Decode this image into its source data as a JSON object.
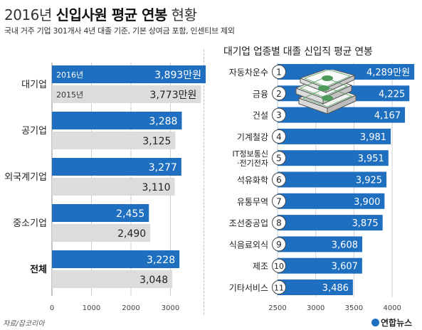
{
  "header": {
    "title_year": "2016년",
    "title_main": "신입사원 평균 연봉",
    "title_rest": "현황",
    "subtitle": "국내 거주 기업 301개사 4년 대졸 기준, 기본 상여금 포함, 인센티브 제외"
  },
  "right_title": "대기업 업종별 대졸 신입직 평균 연봉",
  "source": "자료/잡코리아",
  "logo": "연합뉴스",
  "colors": {
    "accent_2016": "#1f6fc0",
    "gray_2015": "#dcdcdc",
    "highlight_label": "#111111"
  },
  "chart_data": [
    {
      "type": "bar",
      "orientation": "horizontal",
      "categories": [
        "대기업",
        "공기업",
        "외국계기업",
        "중소기업",
        "전체"
      ],
      "highlight_category": "전체",
      "series": [
        {
          "name": "2016년",
          "values": [
            3893,
            3288,
            3277,
            2455,
            3228
          ],
          "color": "#1f6fc0"
        },
        {
          "name": "2015년",
          "values": [
            3773,
            3125,
            3110,
            2490,
            3048
          ],
          "color": "#dcdcdc"
        }
      ],
      "labels_2016": [
        "3,893만원",
        "3,288",
        "3,277",
        "2,455",
        "3,228"
      ],
      "labels_2015": [
        "3,773만원",
        "3,125",
        "3,110",
        "2,490",
        "3,048"
      ],
      "xlim": [
        0,
        3800
      ],
      "xticks": [
        0,
        1000,
        2000,
        3000
      ],
      "grid": true,
      "legend": "inside-first-bars"
    },
    {
      "type": "bar",
      "orientation": "horizontal",
      "title": "대기업 업종별 대졸 신입직 평균 연봉",
      "categories": [
        "자동차운수",
        "금융",
        "건설",
        "기계철강",
        "IT정보통신·전기전자",
        "석유화학",
        "유통무역",
        "조선중공업",
        "식음료외식",
        "제조",
        "기타서비스"
      ],
      "category_lines": [
        [
          "자동차운수"
        ],
        [
          "금융"
        ],
        [
          "건설"
        ],
        [
          "기계철강"
        ],
        [
          "IT정보통신",
          "·전기전자"
        ],
        [
          "석유화학"
        ],
        [
          "유통무역"
        ],
        [
          "조선중공업"
        ],
        [
          "식음료외식"
        ],
        [
          "제조"
        ],
        [
          "기타서비스"
        ]
      ],
      "ranks": [
        "1",
        "2",
        "3",
        "4",
        "5",
        "6",
        "7",
        "8",
        "9",
        "10",
        "11"
      ],
      "values": [
        4289,
        4225,
        4167,
        3981,
        3951,
        3925,
        3900,
        3875,
        3608,
        3607,
        3486
      ],
      "labels": [
        "4,289만원",
        "4,225",
        "4,167",
        "3,981",
        "3,951",
        "3,925",
        "3,900",
        "3,875",
        "3,608",
        "3,607",
        "3,486"
      ],
      "xlim": [
        2500,
        4300
      ],
      "xticks": [
        2500,
        3000,
        3500,
        4000
      ],
      "grid": true,
      "color": "#1f6fc0"
    }
  ]
}
